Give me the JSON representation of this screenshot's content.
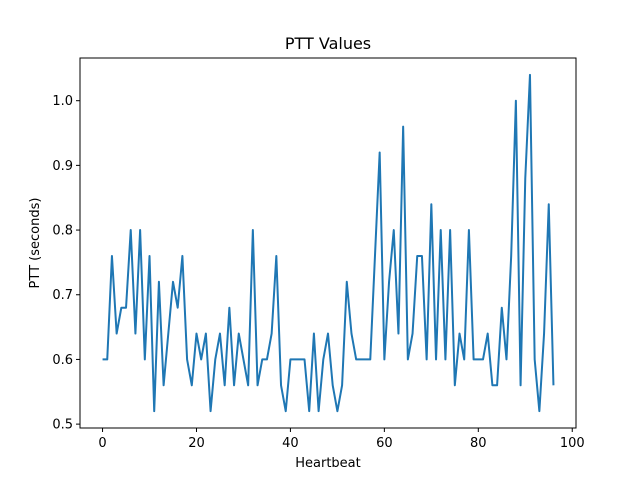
{
  "chart_data": {
    "type": "line",
    "title": "PTT Values",
    "xlabel": "Heartbeat",
    "ylabel": "PTT (seconds)",
    "xlim": [
      -4.8,
      100.8
    ],
    "ylim": [
      0.494,
      1.066
    ],
    "xticks": [
      0,
      20,
      40,
      60,
      80,
      100
    ],
    "yticks": [
      0.5,
      0.6,
      0.7,
      0.8,
      0.9,
      1.0
    ],
    "xtick_labels": [
      "0",
      "20",
      "40",
      "60",
      "80",
      "100"
    ],
    "ytick_labels": [
      "0.5",
      "0.6",
      "0.7",
      "0.8",
      "0.9",
      "1.0"
    ],
    "grid": false,
    "line_color": "#1f77b4",
    "series": [
      {
        "x": [
          0,
          1,
          2,
          3,
          4,
          5,
          6,
          7,
          8,
          9,
          10,
          11,
          12,
          13,
          14,
          15,
          16,
          17,
          18,
          19,
          20,
          21,
          22,
          23,
          24,
          25,
          26,
          27,
          28,
          29,
          30,
          31,
          32,
          33,
          34,
          35,
          36,
          37,
          38,
          39,
          40,
          41,
          42,
          43,
          44,
          45,
          46,
          47,
          48,
          49,
          50,
          51,
          52,
          53,
          54,
          55,
          56,
          57,
          58,
          59,
          60,
          61,
          62,
          63,
          64,
          65,
          66,
          67,
          68,
          69,
          70,
          71,
          72,
          73,
          74,
          75,
          76,
          77,
          78,
          79,
          80,
          81,
          82,
          83,
          84,
          85,
          86,
          87,
          88,
          89,
          90,
          91,
          92,
          93,
          94,
          95,
          96
        ],
        "values": [
          0.6,
          0.6,
          0.76,
          0.64,
          0.68,
          0.68,
          0.8,
          0.64,
          0.8,
          0.6,
          0.76,
          0.52,
          0.72,
          0.56,
          0.64,
          0.72,
          0.68,
          0.76,
          0.6,
          0.56,
          0.64,
          0.6,
          0.64,
          0.52,
          0.6,
          0.64,
          0.56,
          0.68,
          0.56,
          0.64,
          0.6,
          0.56,
          0.8,
          0.56,
          0.6,
          0.6,
          0.64,
          0.76,
          0.56,
          0.52,
          0.6,
          0.6,
          0.6,
          0.6,
          0.52,
          0.64,
          0.52,
          0.6,
          0.64,
          0.56,
          0.52,
          0.56,
          0.72,
          0.64,
          0.6,
          0.6,
          0.6,
          0.6,
          0.76,
          0.92,
          0.6,
          0.72,
          0.8,
          0.64,
          0.96,
          0.6,
          0.64,
          0.76,
          0.76,
          0.6,
          0.84,
          0.6,
          0.8,
          0.6,
          0.8,
          0.56,
          0.64,
          0.6,
          0.8,
          0.6,
          0.6,
          0.6,
          0.64,
          0.56,
          0.56,
          0.68,
          0.6,
          0.76,
          1.0,
          0.56,
          0.88,
          1.04,
          0.6,
          0.52,
          0.64,
          0.84,
          0.56
        ]
      }
    ]
  }
}
